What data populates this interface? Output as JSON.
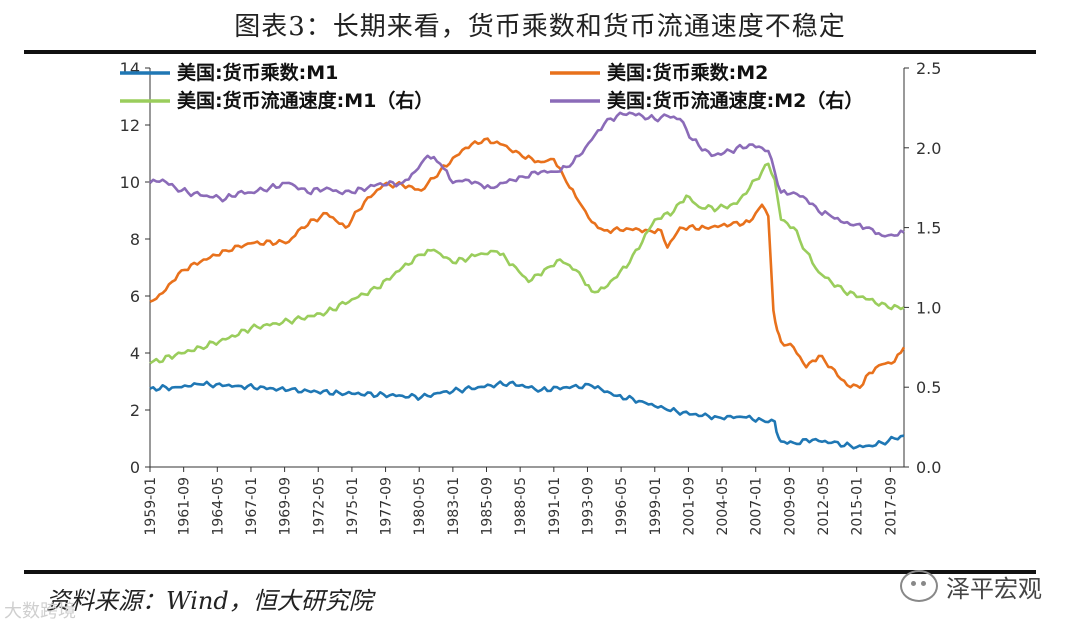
{
  "header": {
    "title": "图表3：长期来看，货币乘数和货币流通速度不稳定"
  },
  "footer": {
    "source": "资料来源：Wind，恒大研究院",
    "watermark_right": "泽平宏观",
    "watermark_left": "大数跨境"
  },
  "chart_data": {
    "type": "line",
    "title": "图表3：长期来看，货币乘数和货币流通速度不稳定",
    "left_axis": {
      "min": 0,
      "max": 14,
      "ticks": [
        "0",
        "2",
        "4",
        "6",
        "8",
        "10",
        "12",
        "14"
      ]
    },
    "right_axis": {
      "min": 0,
      "max": 2.5,
      "ticks": [
        "0.0",
        "0.5",
        "1.0",
        "1.5",
        "2.0",
        "2.5"
      ]
    },
    "x_range": [
      1959.0,
      2018.75
    ],
    "x_ticks": [
      "1959-01",
      "1961-09",
      "1964-05",
      "1967-01",
      "1969-09",
      "1972-05",
      "1975-01",
      "1977-09",
      "1980-05",
      "1983-01",
      "1985-09",
      "1988-05",
      "1991-01",
      "1993-09",
      "1996-05",
      "1999-01",
      "2001-09",
      "2004-05",
      "2007-01",
      "2009-09",
      "2012-05",
      "2015-01",
      "2017-09"
    ],
    "series": [
      {
        "name": "美国:货币乘数:M1",
        "axis": "left",
        "color": "#1f77b4",
        "x": [
          1959.0,
          1961.0,
          1963.0,
          1966.0,
          1970.0,
          1974.0,
          1979.0,
          1980.5,
          1982.0,
          1985.0,
          1987.5,
          1990.0,
          1992.0,
          1994.0,
          1996.0,
          1998.0,
          2000.0,
          2002.0,
          2004.0,
          2006.0,
          2007.5,
          2008.5,
          2008.8,
          2009.0,
          2010.0,
          2011.5,
          2013.0,
          2014.5,
          2015.0,
          2016.0,
          2017.0,
          2018.0,
          2018.75
        ],
        "values": [
          2.75,
          2.8,
          2.9,
          2.85,
          2.7,
          2.6,
          2.5,
          2.45,
          2.6,
          2.8,
          2.95,
          2.7,
          2.8,
          2.85,
          2.5,
          2.3,
          2.0,
          1.85,
          1.75,
          1.75,
          1.65,
          1.6,
          1.05,
          0.9,
          0.85,
          0.95,
          0.85,
          0.75,
          0.7,
          0.75,
          0.85,
          1.0,
          1.1
        ]
      },
      {
        "name": "美国:货币乘数:M2",
        "axis": "left",
        "color": "#e8711c",
        "x": [
          1959.0,
          1960.0,
          1961.5,
          1963.0,
          1965.0,
          1967.0,
          1970.0,
          1971.0,
          1973.0,
          1974.5,
          1976.0,
          1977.5,
          1979.0,
          1980.5,
          1982.0,
          1984.0,
          1985.5,
          1987.0,
          1988.5,
          1990.0,
          1991.0,
          1992.0,
          1993.0,
          1994.0,
          1995.0,
          1997.0,
          1998.5,
          1999.5,
          2000.0,
          2001.0,
          2003.0,
          2005.0,
          2006.5,
          2007.5,
          2008.0,
          2008.4,
          2008.7,
          2009.0,
          2010.0,
          2011.0,
          2012.0,
          2013.0,
          2013.5,
          2014.5,
          2015.5,
          2016.0,
          2017.0,
          2018.0,
          2018.75
        ],
        "values": [
          5.8,
          6.1,
          6.9,
          7.2,
          7.6,
          7.85,
          7.9,
          8.4,
          8.9,
          8.4,
          9.3,
          9.9,
          9.9,
          9.7,
          10.4,
          11.2,
          11.5,
          11.3,
          10.9,
          10.7,
          10.8,
          10.0,
          9.3,
          8.6,
          8.3,
          8.35,
          8.3,
          8.3,
          7.7,
          8.4,
          8.4,
          8.5,
          8.6,
          9.2,
          8.8,
          5.5,
          4.8,
          4.4,
          4.2,
          3.5,
          3.9,
          3.5,
          3.2,
          2.8,
          2.9,
          3.3,
          3.6,
          3.7,
          4.2
        ]
      },
      {
        "name": "美国:货币流通速度:M1（右）",
        "axis": "right",
        "color": "#9acd5c",
        "x": [
          1959.0,
          1961.0,
          1963.0,
          1965.0,
          1967.0,
          1969.0,
          1971.0,
          1973.0,
          1975.0,
          1977.0,
          1979.0,
          1980.5,
          1981.5,
          1983.0,
          1985.0,
          1986.5,
          1988.0,
          1989.0,
          1990.5,
          1991.5,
          1993.0,
          1994.0,
          1995.0,
          1997.0,
          1999.0,
          2000.5,
          2001.5,
          2002.5,
          2004.0,
          2005.5,
          2007.0,
          2008.0,
          2008.5,
          2009.0,
          2010.0,
          2011.0,
          2012.0,
          2014.0,
          2016.0,
          2017.5,
          2018.75
        ],
        "values": [
          0.65,
          0.7,
          0.75,
          0.8,
          0.87,
          0.9,
          0.93,
          0.97,
          1.05,
          1.12,
          1.25,
          1.33,
          1.36,
          1.28,
          1.33,
          1.35,
          1.25,
          1.16,
          1.25,
          1.3,
          1.22,
          1.1,
          1.12,
          1.28,
          1.55,
          1.6,
          1.7,
          1.63,
          1.62,
          1.65,
          1.8,
          1.9,
          1.8,
          1.55,
          1.5,
          1.35,
          1.22,
          1.1,
          1.05,
          1.0,
          1.0
        ]
      },
      {
        "name": "美国:货币流通速度:M2（右）",
        "axis": "right",
        "color": "#8b6bb8",
        "x": [
          1959.0,
          1960.0,
          1961.0,
          1962.0,
          1963.5,
          1965.0,
          1966.0,
          1967.0,
          1968.5,
          1970.0,
          1971.5,
          1973.0,
          1974.0,
          1975.0,
          1977.0,
          1979.0,
          1980.0,
          1981.0,
          1982.0,
          1983.0,
          1984.0,
          1985.0,
          1986.0,
          1987.0,
          1988.5,
          1990.0,
          1991.0,
          1992.0,
          1993.0,
          1994.0,
          1995.0,
          1996.0,
          1997.0,
          1998.0,
          1999.0,
          2000.0,
          2001.0,
          2002.0,
          2003.5,
          2005.0,
          2006.5,
          2007.5,
          2008.0,
          2008.5,
          2009.0,
          2010.0,
          2011.0,
          2012.0,
          2013.0,
          2014.0,
          2015.0,
          2016.0,
          2017.0,
          2018.0,
          2018.75
        ],
        "values": [
          1.78,
          1.8,
          1.75,
          1.72,
          1.7,
          1.68,
          1.72,
          1.72,
          1.75,
          1.78,
          1.72,
          1.75,
          1.72,
          1.72,
          1.77,
          1.78,
          1.85,
          1.95,
          1.9,
          1.78,
          1.8,
          1.78,
          1.75,
          1.78,
          1.82,
          1.85,
          1.85,
          1.88,
          1.95,
          2.05,
          2.15,
          2.2,
          2.22,
          2.2,
          2.18,
          2.2,
          2.18,
          2.05,
          1.95,
          1.98,
          2.02,
          2.0,
          1.98,
          1.85,
          1.72,
          1.72,
          1.68,
          1.6,
          1.57,
          1.53,
          1.52,
          1.5,
          1.45,
          1.45,
          1.47
        ]
      }
    ]
  }
}
